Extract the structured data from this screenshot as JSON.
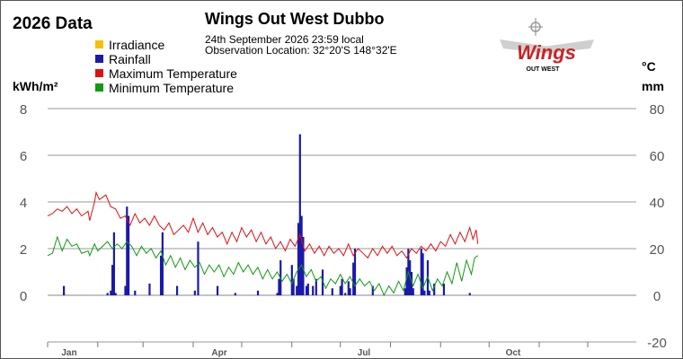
{
  "chart_data": {
    "type": "bar+line",
    "title": "Wings Out West Dubbo",
    "corner_title": "2026 Data",
    "date_line": "24th September 2026  23:59 local",
    "location_line": "Observation Location:   32°20'S 148°32'E",
    "logo": {
      "word": "Wings",
      "subword": "OUT WEST",
      "color": "#cc2222",
      "shape": "winged-logo"
    },
    "left_axis": {
      "unit": "kWh/m²",
      "ticks": [
        "8",
        "6",
        "4",
        "2",
        "0"
      ],
      "range": [
        0,
        8
      ]
    },
    "right_axis": {
      "unit_top": "°C",
      "unit_bottom": "mm",
      "ticks": [
        "80",
        "60",
        "40",
        "20",
        "0",
        "-20"
      ],
      "range": [
        -20,
        80
      ]
    },
    "x_axis": {
      "labels": [
        "Jan",
        "Apr",
        "Jul",
        "Oct"
      ],
      "range": [
        1,
        365
      ],
      "month_start_days": [
        1,
        32,
        60,
        91,
        121,
        152,
        182,
        213,
        244,
        274,
        305,
        335
      ]
    },
    "grid": true,
    "legend": [
      {
        "label": "Irradiance",
        "color": "#f2c200"
      },
      {
        "label": "Rainfall",
        "color": "#1a1aaa"
      },
      {
        "label": "Maximum Temperature",
        "color": "#dd1111"
      },
      {
        "label": "Minimum Temperature",
        "color": "#119911"
      }
    ],
    "rainfall_mm": [
      [
        11,
        4
      ],
      [
        38,
        1
      ],
      [
        40,
        2
      ],
      [
        41,
        13
      ],
      [
        42,
        27
      ],
      [
        43,
        1
      ],
      [
        49,
        4
      ],
      [
        50,
        38
      ],
      [
        51,
        34
      ],
      [
        55,
        2
      ],
      [
        64,
        5
      ],
      [
        71,
        17
      ],
      [
        72,
        27
      ],
      [
        81,
        4
      ],
      [
        92,
        2
      ],
      [
        94,
        23
      ],
      [
        106,
        4
      ],
      [
        117,
        1
      ],
      [
        131,
        2
      ],
      [
        143,
        1
      ],
      [
        144,
        7
      ],
      [
        145,
        15
      ],
      [
        152,
        13
      ],
      [
        153,
        7
      ],
      [
        155,
        4
      ],
      [
        156,
        31
      ],
      [
        157,
        69
      ],
      [
        158,
        34
      ],
      [
        159,
        25
      ],
      [
        161,
        4
      ],
      [
        162,
        5
      ],
      [
        165,
        4
      ],
      [
        167,
        7
      ],
      [
        171,
        11
      ],
      [
        177,
        3
      ],
      [
        182,
        4
      ],
      [
        183,
        7
      ],
      [
        185,
        1
      ],
      [
        187,
        6
      ],
      [
        188,
        3
      ],
      [
        190,
        14
      ],
      [
        191,
        20
      ],
      [
        202,
        4
      ],
      [
        222,
        3
      ],
      [
        223,
        12
      ],
      [
        224,
        20
      ],
      [
        225,
        15
      ],
      [
        226,
        10
      ],
      [
        227,
        3
      ],
      [
        232,
        20
      ],
      [
        233,
        18
      ],
      [
        234,
        2
      ],
      [
        236,
        15
      ],
      [
        237,
        2
      ],
      [
        240,
        5
      ],
      [
        246,
        5
      ],
      [
        262,
        1
      ]
    ],
    "max_temp": [
      [
        1,
        34
      ],
      [
        4,
        35
      ],
      [
        7,
        37
      ],
      [
        10,
        36
      ],
      [
        13,
        38
      ],
      [
        16,
        35
      ],
      [
        19,
        37
      ],
      [
        22,
        34
      ],
      [
        26,
        36
      ],
      [
        27,
        32
      ],
      [
        30,
        40
      ],
      [
        31,
        44
      ],
      [
        33,
        41
      ],
      [
        35,
        42
      ],
      [
        37,
        43
      ],
      [
        40,
        38
      ],
      [
        43,
        37
      ],
      [
        46,
        33
      ],
      [
        49,
        34
      ],
      [
        52,
        30
      ],
      [
        55,
        35
      ],
      [
        58,
        31
      ],
      [
        61,
        33
      ],
      [
        64,
        30
      ],
      [
        67,
        34
      ],
      [
        70,
        30
      ],
      [
        73,
        28
      ],
      [
        76,
        31
      ],
      [
        79,
        26
      ],
      [
        82,
        28
      ],
      [
        85,
        30
      ],
      [
        88,
        27
      ],
      [
        91,
        33
      ],
      [
        94,
        27
      ],
      [
        97,
        31
      ],
      [
        100,
        26
      ],
      [
        103,
        29
      ],
      [
        106,
        25
      ],
      [
        109,
        27
      ],
      [
        112,
        22
      ],
      [
        115,
        27
      ],
      [
        118,
        23
      ],
      [
        121,
        29
      ],
      [
        124,
        25
      ],
      [
        127,
        28
      ],
      [
        130,
        23
      ],
      [
        133,
        27
      ],
      [
        136,
        22
      ],
      [
        139,
        25
      ],
      [
        142,
        20
      ],
      [
        145,
        23
      ],
      [
        148,
        19
      ],
      [
        151,
        24
      ],
      [
        154,
        21
      ],
      [
        157,
        26
      ],
      [
        160,
        19
      ],
      [
        163,
        22
      ],
      [
        166,
        18
      ],
      [
        169,
        21
      ],
      [
        172,
        17
      ],
      [
        175,
        21
      ],
      [
        178,
        18
      ],
      [
        181,
        20
      ],
      [
        184,
        17
      ],
      [
        187,
        22
      ],
      [
        190,
        17
      ],
      [
        193,
        20
      ],
      [
        196,
        18
      ],
      [
        199,
        16
      ],
      [
        202,
        20
      ],
      [
        205,
        17
      ],
      [
        208,
        21
      ],
      [
        211,
        18
      ],
      [
        214,
        21
      ],
      [
        217,
        17
      ],
      [
        220,
        19
      ],
      [
        223,
        16
      ],
      [
        226,
        20
      ],
      [
        229,
        18
      ],
      [
        232,
        21
      ],
      [
        235,
        19
      ],
      [
        238,
        22
      ],
      [
        241,
        19
      ],
      [
        244,
        23
      ],
      [
        247,
        21
      ],
      [
        250,
        26
      ],
      [
        253,
        22
      ],
      [
        256,
        27
      ],
      [
        259,
        23
      ],
      [
        262,
        29
      ],
      [
        264,
        24
      ],
      [
        266,
        28
      ],
      [
        267,
        22
      ]
    ],
    "min_temp": [
      [
        1,
        17
      ],
      [
        4,
        18
      ],
      [
        7,
        25
      ],
      [
        10,
        19
      ],
      [
        13,
        24
      ],
      [
        16,
        21
      ],
      [
        19,
        22
      ],
      [
        22,
        18
      ],
      [
        26,
        19
      ],
      [
        27,
        17
      ],
      [
        30,
        22
      ],
      [
        32,
        19
      ],
      [
        35,
        21
      ],
      [
        38,
        23
      ],
      [
        41,
        20
      ],
      [
        44,
        22
      ],
      [
        47,
        20
      ],
      [
        50,
        23
      ],
      [
        53,
        21
      ],
      [
        56,
        17
      ],
      [
        59,
        21
      ],
      [
        62,
        18
      ],
      [
        65,
        20
      ],
      [
        68,
        16
      ],
      [
        71,
        19
      ],
      [
        74,
        13
      ],
      [
        77,
        17
      ],
      [
        80,
        12
      ],
      [
        83,
        16
      ],
      [
        86,
        11
      ],
      [
        89,
        15
      ],
      [
        92,
        12
      ],
      [
        95,
        14
      ],
      [
        98,
        9
      ],
      [
        101,
        13
      ],
      [
        104,
        10
      ],
      [
        107,
        13
      ],
      [
        110,
        8
      ],
      [
        113,
        12
      ],
      [
        116,
        9
      ],
      [
        119,
        14
      ],
      [
        122,
        10
      ],
      [
        125,
        13
      ],
      [
        128,
        9
      ],
      [
        131,
        12
      ],
      [
        134,
        7
      ],
      [
        137,
        11
      ],
      [
        140,
        7
      ],
      [
        143,
        10
      ],
      [
        146,
        6
      ],
      [
        149,
        9
      ],
      [
        152,
        5
      ],
      [
        155,
        10
      ],
      [
        158,
        13
      ],
      [
        161,
        8
      ],
      [
        164,
        11
      ],
      [
        167,
        6
      ],
      [
        170,
        8
      ],
      [
        173,
        3
      ],
      [
        176,
        7
      ],
      [
        179,
        5
      ],
      [
        182,
        9
      ],
      [
        185,
        5
      ],
      [
        188,
        8
      ],
      [
        191,
        4
      ],
      [
        194,
        7
      ],
      [
        197,
        4
      ],
      [
        200,
        6
      ],
      [
        203,
        2
      ],
      [
        206,
        5
      ],
      [
        209,
        0
      ],
      [
        212,
        4
      ],
      [
        215,
        1
      ],
      [
        218,
        6
      ],
      [
        221,
        2
      ],
      [
        224,
        10
      ],
      [
        227,
        4
      ],
      [
        230,
        9
      ],
      [
        233,
        3
      ],
      [
        236,
        8
      ],
      [
        239,
        2
      ],
      [
        242,
        7
      ],
      [
        245,
        4
      ],
      [
        248,
        10
      ],
      [
        251,
        5
      ],
      [
        254,
        14
      ],
      [
        257,
        6
      ],
      [
        260,
        15
      ],
      [
        263,
        9
      ],
      [
        265,
        16
      ],
      [
        267,
        17
      ]
    ]
  }
}
